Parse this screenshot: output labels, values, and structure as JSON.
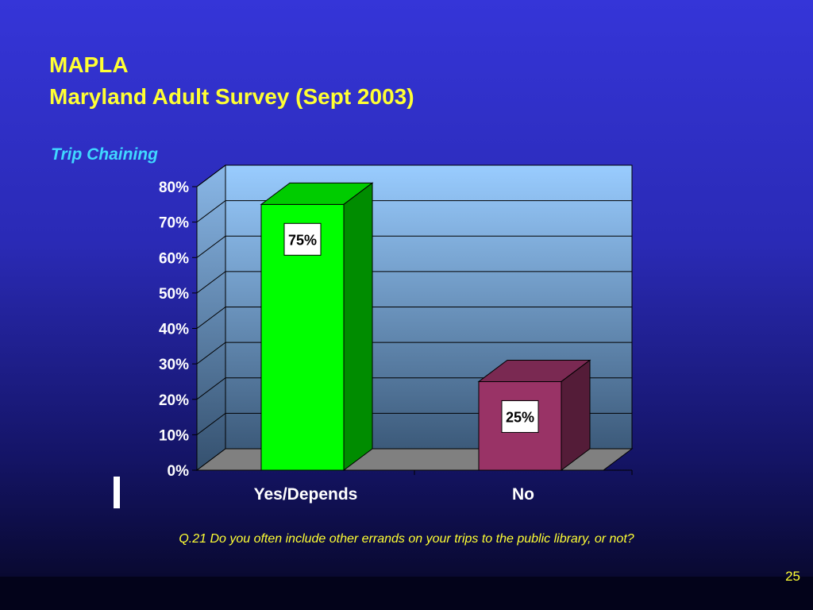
{
  "slide": {
    "title_line1": "MAPLA",
    "title_line2": "Maryland Adult Survey (Sept 2003)",
    "subtitle": "Trip Chaining",
    "question": "Q.21  Do you often include other errands on your trips to the public library, or not?",
    "page_number": "25"
  },
  "chart_data": {
    "type": "bar",
    "categories": [
      "Yes/Depends",
      "No"
    ],
    "values": [
      75,
      25
    ],
    "data_labels": [
      "75%",
      "25%"
    ],
    "colors": [
      "#00ff00",
      "#993366"
    ],
    "y_ticks": [
      "0%",
      "10%",
      "20%",
      "30%",
      "40%",
      "50%",
      "60%",
      "70%",
      "80%"
    ],
    "ylim": [
      0,
      80
    ],
    "grid": true,
    "three_d": true
  }
}
